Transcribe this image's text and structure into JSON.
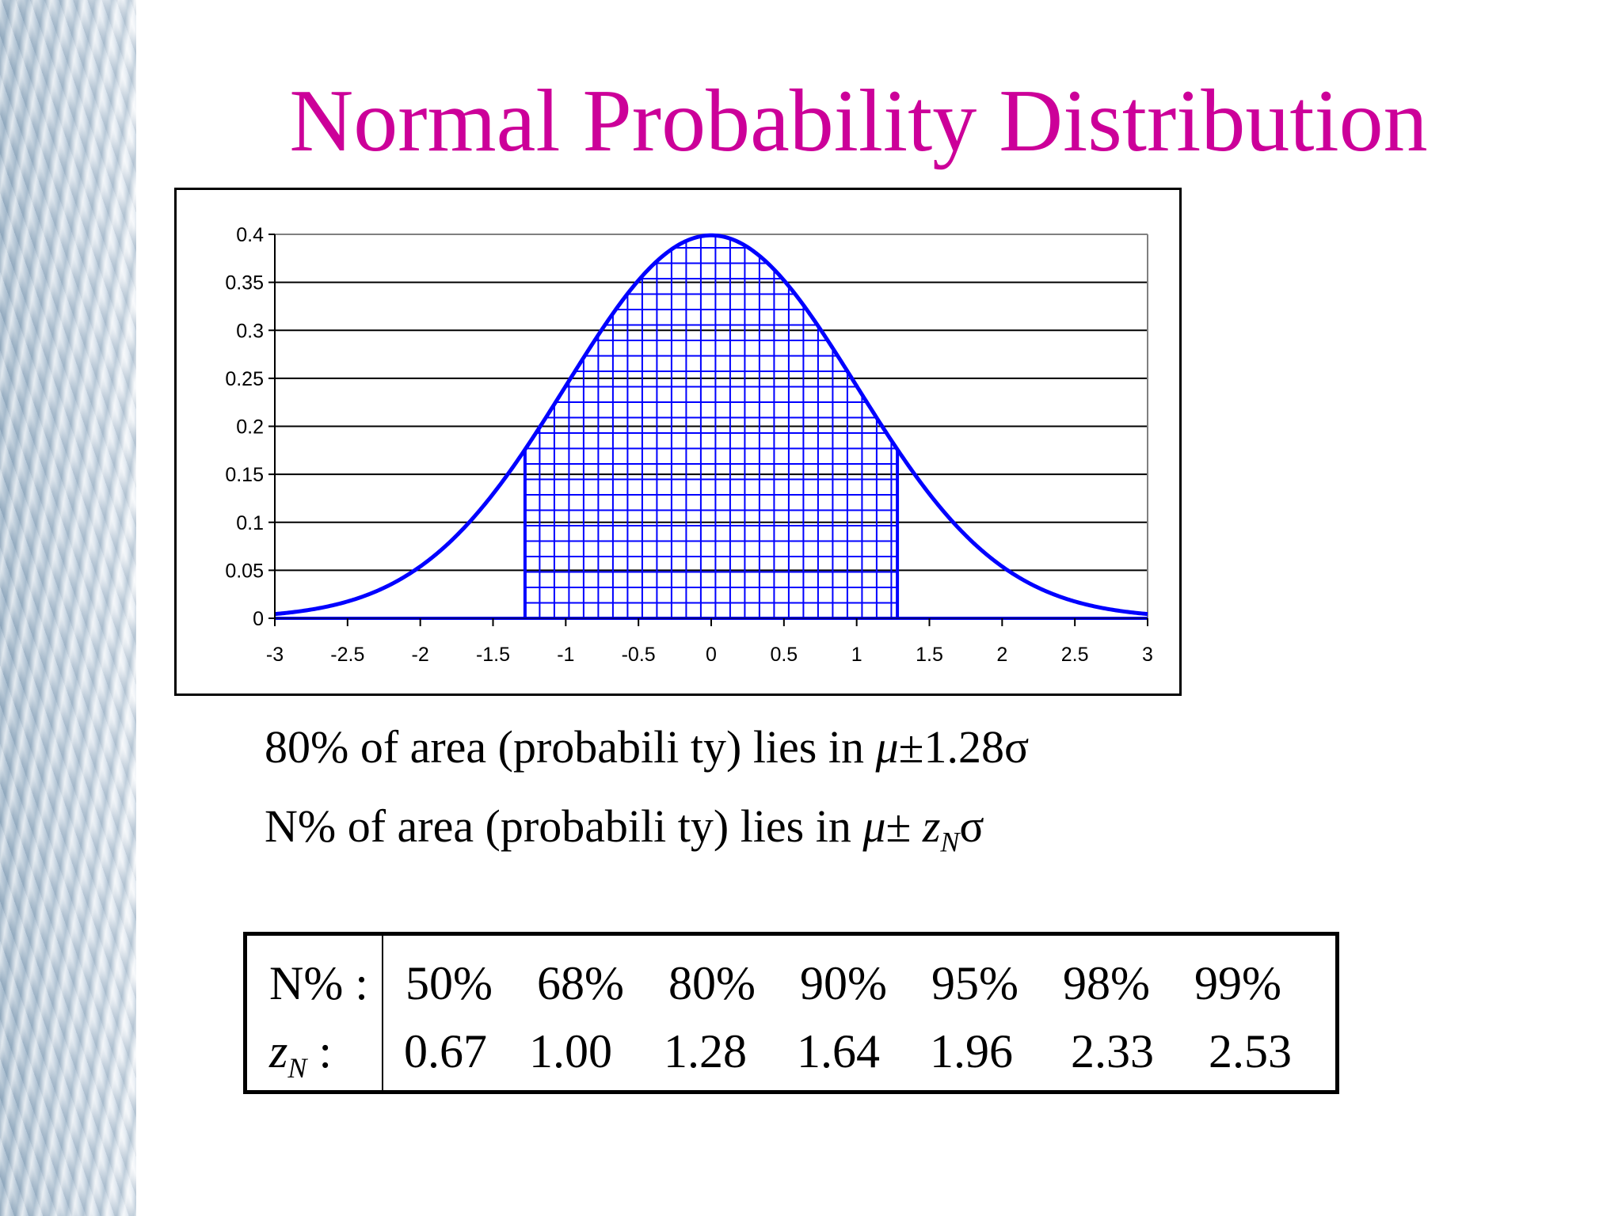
{
  "slide": {
    "title": "Normal Probability Distribution"
  },
  "chart_data": {
    "type": "area",
    "distribution": "standard normal density",
    "x_ticks": [
      "-3",
      "-2.5",
      "-2",
      "-1.5",
      "-1",
      "-0.5",
      "0",
      "0.5",
      "1",
      "1.5",
      "2",
      "2.5",
      "3"
    ],
    "y_ticks": [
      "0",
      "0.05",
      "0.1",
      "0.15",
      "0.2",
      "0.25",
      "0.3",
      "0.35",
      "0.4"
    ],
    "xlim": [
      -3,
      3
    ],
    "ylim": [
      0,
      0.4
    ],
    "x": [
      -3,
      -2.5,
      -2,
      -1.5,
      -1.28,
      -1,
      -0.5,
      0,
      0.5,
      1,
      1.28,
      1.5,
      2,
      2.5,
      3
    ],
    "y": [
      0.0044,
      0.0175,
      0.054,
      0.1295,
      0.1758,
      0.242,
      0.3521,
      0.3989,
      0.3521,
      0.242,
      0.1758,
      0.1295,
      0.054,
      0.0175,
      0.0044
    ],
    "shaded_interval": [
      -1.28,
      1.28
    ],
    "grid": "horizontal",
    "line_color": "#0000ff",
    "xlabel": "",
    "ylabel": ""
  },
  "statements": {
    "line1_prefix": "80% of area (probabili ty) lies  in",
    "line1_mu": "μ",
    "line1_rest": "±1.28σ",
    "line2_prefix": "N% of area (probabili ty) lies  in",
    "line2_mu": "μ",
    "line2_pm": "± ",
    "line2_z": "z",
    "line2_sub": "N",
    "line2_sigma": "σ"
  },
  "z_table": {
    "row1_label": "N% :",
    "row2_label_z": "z",
    "row2_label_sub": "N",
    "row2_label_colon": ":",
    "percentages": [
      "50%",
      "68%",
      "80%",
      "90%",
      "95%",
      "98%",
      "99%"
    ],
    "z_values": [
      "0.67",
      "1.00",
      "1.28",
      "1.64",
      "1.96",
      "2.33",
      "2.53"
    ]
  }
}
